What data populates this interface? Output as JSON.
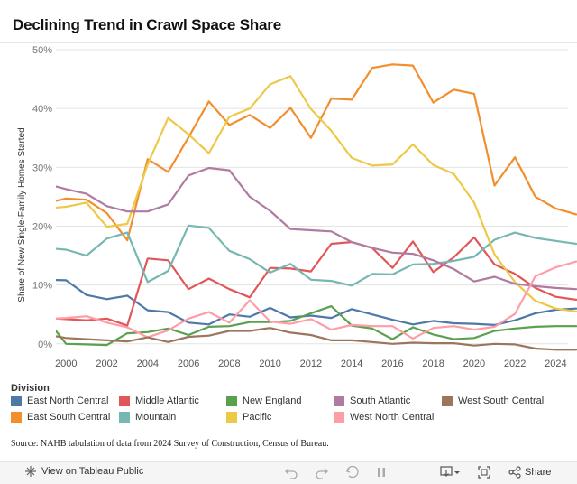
{
  "title": "Declining Trend in Crawl Space Share",
  "legend_title": "Division",
  "source": "Source: NAHB tabulation of data from 2024 Survey of Construction, Census of Bureau.",
  "toolbar": {
    "view_label": "View on Tableau Public",
    "share_label": "Share",
    "icons": [
      "tableau-icon",
      "undo-icon",
      "redo-icon",
      "revert-icon",
      "pause-icon",
      "download-icon",
      "fullscreen-icon",
      "share-icon"
    ]
  },
  "chart_data": {
    "type": "line",
    "title": "Declining Trend in Crawl Space Share",
    "xlabel": "",
    "ylabel": "Share of New Single-Family Homes Started",
    "xlim": [
      1999.5,
      2024.6
    ],
    "ylim": [
      -0.8,
      50
    ],
    "y_ticks": [
      0,
      10,
      20,
      30,
      40,
      50
    ],
    "y_tick_labels": [
      "0%",
      "10%",
      "20%",
      "30%",
      "40%",
      "50%"
    ],
    "x_ticks": [
      2000,
      2002,
      2004,
      2006,
      2008,
      2010,
      2012,
      2014,
      2016,
      2018,
      2020,
      2022,
      2024
    ],
    "x_tick_labels": [
      "2000",
      "2002",
      "2004",
      "2006",
      "2008",
      "2010",
      "2012",
      "2014",
      "2016",
      "2018",
      "2020",
      "2022",
      "2024"
    ],
    "grid": "horizontal",
    "x": [
      1999,
      2000,
      2001,
      2002,
      2003,
      2004,
      2005,
      2006,
      2007,
      2008,
      2009,
      2010,
      2011,
      2012,
      2013,
      2014,
      2015,
      2016,
      2017,
      2018,
      2019,
      2020,
      2021,
      2022,
      2023,
      2024,
      2025
    ],
    "series": [
      {
        "name": "East North Central",
        "color": "#4e79a7",
        "values": [
          10.9,
          10.8,
          8.3,
          7.6,
          8.2,
          5.7,
          5.4,
          3.6,
          3.3,
          5.0,
          4.6,
          6.1,
          4.5,
          4.8,
          4.4,
          5.9,
          5.0,
          4.1,
          3.3,
          3.9,
          3.5,
          3.4,
          3.2,
          4.0,
          5.2,
          5.8,
          6.0
        ]
      },
      {
        "name": "East South Central",
        "color": "#f28e2b",
        "values": [
          23.9,
          24.7,
          24.5,
          22.2,
          17.6,
          31.4,
          29.2,
          35.1,
          41.2,
          37.2,
          38.9,
          36.7,
          40.1,
          35.0,
          41.7,
          41.5,
          46.9,
          47.5,
          47.3,
          41.0,
          43.2,
          42.5,
          26.9,
          31.7,
          25.0,
          23.0,
          22.0
        ]
      },
      {
        "name": "Middle Atlantic",
        "color": "#e15759",
        "values": [
          4.4,
          4.2,
          4.0,
          4.3,
          3.1,
          14.5,
          14.2,
          9.3,
          11.1,
          9.3,
          7.9,
          12.9,
          12.8,
          12.3,
          17.0,
          17.3,
          16.3,
          12.9,
          17.4,
          12.2,
          14.7,
          18.1,
          13.5,
          11.9,
          9.5,
          8.0,
          7.5
        ]
      },
      {
        "name": "Mountain",
        "color": "#76b7b2",
        "values": [
          16.3,
          16.0,
          15.0,
          17.9,
          18.9,
          10.5,
          12.4,
          20.1,
          19.7,
          15.8,
          14.4,
          12.1,
          13.6,
          10.9,
          10.7,
          9.9,
          11.9,
          11.8,
          13.5,
          13.6,
          14.1,
          14.8,
          17.7,
          18.9,
          18.0,
          17.5,
          17.0
        ]
      },
      {
        "name": "New England",
        "color": "#59a14f",
        "values": [
          4.4,
          0.0,
          -0.1,
          -0.2,
          1.8,
          2.0,
          2.6,
          1.5,
          2.9,
          3.0,
          3.7,
          3.7,
          3.9,
          5.2,
          6.4,
          3.1,
          2.6,
          0.8,
          2.8,
          1.6,
          0.8,
          1.0,
          2.2,
          2.6,
          2.9,
          3.0,
          3.0
        ]
      },
      {
        "name": "Pacific",
        "color": "#edc948",
        "values": [
          23.0,
          23.3,
          24.0,
          19.9,
          20.4,
          30.5,
          38.4,
          35.6,
          32.4,
          38.6,
          40.0,
          44.1,
          45.5,
          39.9,
          36.2,
          31.6,
          30.3,
          30.5,
          33.9,
          30.4,
          28.9,
          24.0,
          15.2,
          10.5,
          7.3,
          6.0,
          5.5
        ]
      },
      {
        "name": "South Atlantic",
        "color": "#b07aa1",
        "values": [
          27.2,
          26.3,
          25.5,
          23.4,
          22.5,
          22.5,
          23.7,
          28.6,
          29.9,
          29.5,
          25.0,
          22.6,
          19.5,
          19.3,
          19.1,
          17.3,
          16.3,
          15.5,
          15.3,
          14.2,
          12.7,
          10.6,
          11.4,
          10.2,
          9.8,
          9.5,
          9.3
        ]
      },
      {
        "name": "West North Central",
        "color": "#ff9da7",
        "values": [
          4.2,
          4.4,
          4.7,
          3.6,
          2.8,
          1.1,
          2.3,
          4.3,
          5.4,
          3.6,
          7.4,
          3.8,
          3.4,
          4.2,
          2.4,
          3.2,
          3.0,
          3.0,
          0.9,
          2.7,
          3.0,
          2.4,
          2.9,
          5.1,
          11.5,
          13.0,
          14.0
        ]
      },
      {
        "name": "West South Central",
        "color": "#9c755f",
        "values": [
          1.6,
          1.0,
          0.8,
          0.6,
          0.4,
          1.1,
          0.3,
          1.2,
          1.4,
          2.2,
          2.2,
          2.7,
          1.9,
          1.5,
          0.6,
          0.6,
          0.3,
          0.0,
          0.2,
          0.1,
          0.1,
          -0.3,
          0.0,
          -0.1,
          -0.8,
          -1.0,
          -1.0
        ]
      }
    ]
  },
  "legend_layout": [
    [
      "East North Central",
      "Middle Atlantic",
      "New England",
      "South Atlantic",
      "West South Central"
    ],
    [
      "East South Central",
      "Mountain",
      "Pacific",
      "West North Central"
    ]
  ]
}
